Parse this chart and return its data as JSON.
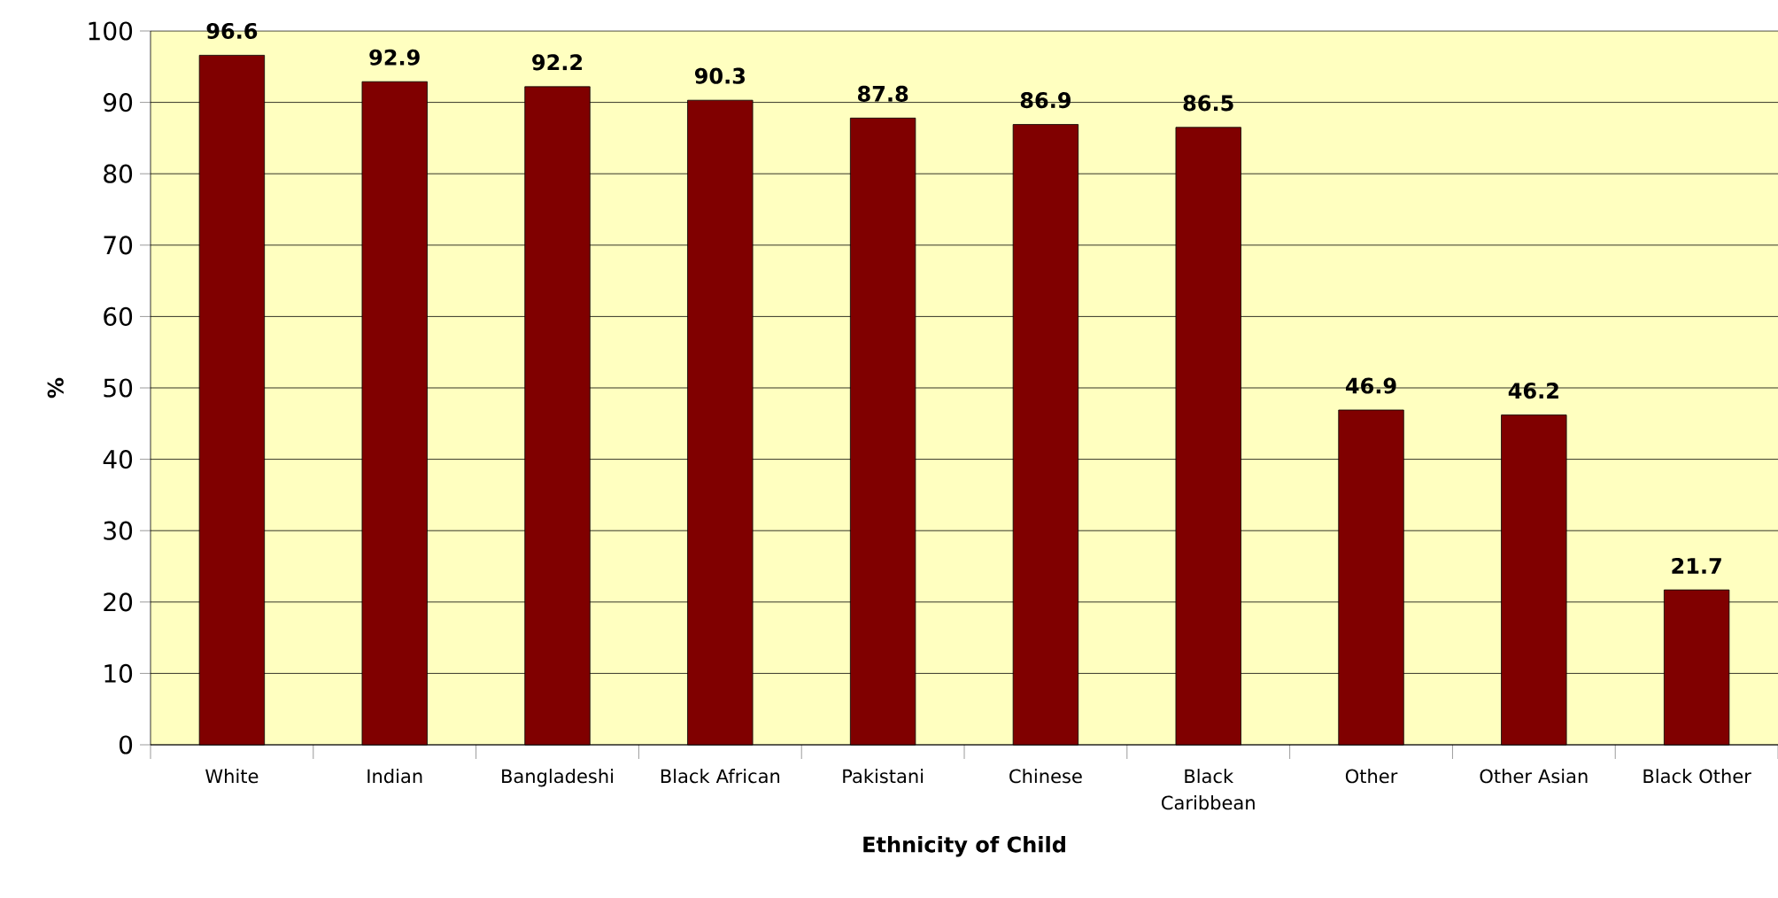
{
  "chart_data": {
    "type": "bar",
    "xlabel": "Ethnicity of Child",
    "ylabel": "%",
    "categories": [
      "White",
      "Indian",
      "Bangladeshi",
      "Black African",
      "Pakistani",
      "Chinese",
      "Black Caribbean",
      "Other",
      "Other Asian",
      "Black Other"
    ],
    "values": [
      96.6,
      92.9,
      92.2,
      90.3,
      87.8,
      86.9,
      86.5,
      46.9,
      46.2,
      21.7
    ],
    "color": "#800000",
    "ylim": [
      0,
      100
    ],
    "yticks": [
      0,
      10,
      20,
      30,
      40,
      50,
      60,
      70,
      80,
      90,
      100
    ],
    "grid": "y",
    "data_labels": true
  }
}
